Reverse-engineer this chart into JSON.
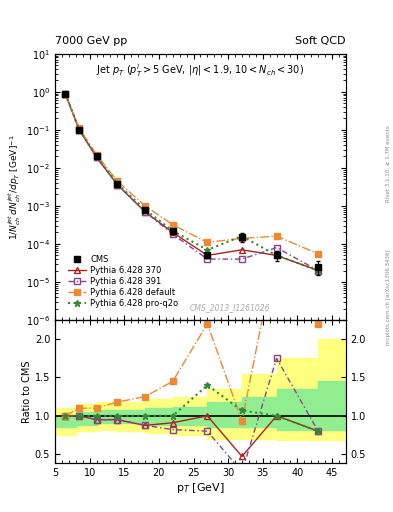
{
  "title_left": "7000 GeV pp",
  "title_right": "Soft QCD",
  "right_label1": "Rivet 3.1.10, ≥ 1.7M events",
  "right_label2": "mcplots.cern.ch [arXiv:1306.3436]",
  "watermark": "CMS_2013_I1261026",
  "xlabel": "p$_{T}$ [GeV]",
  "ylabel_main": "1/N$_{ch}^{jet}$ dN$_{ch}^{jet}$/dp$_{T}$  [GeV]$^{-1}$",
  "ylabel_ratio": "Ratio to CMS",
  "inner_title": "Jet p$_{T}$ (p$^{l}_{T}$>5 GeV, |$\\eta$|<1.9, 10<N$_{ch}$<30)",
  "cms_pt": [
    6.5,
    8.5,
    11,
    14,
    18,
    22,
    27,
    32,
    37,
    43
  ],
  "cms_y": [
    0.85,
    0.1,
    0.02,
    0.0038,
    0.0008,
    0.00022,
    5e-05,
    0.00015,
    5e-05,
    2.5e-05
  ],
  "cms_yerr": [
    0.03,
    0.006,
    0.001,
    0.0002,
    4e-05,
    1.5e-05,
    8e-06,
    4e-05,
    1.5e-05,
    1e-05
  ],
  "p370_pt": [
    6.5,
    8.5,
    11,
    14,
    18,
    22,
    27,
    32,
    37,
    43
  ],
  "p370_y": [
    0.88,
    0.1,
    0.019,
    0.0036,
    0.0007,
    0.0002,
    5e-05,
    7e-05,
    5e-05,
    2e-05
  ],
  "p391_pt": [
    6.5,
    8.5,
    11,
    14,
    18,
    22,
    27,
    32,
    37,
    43
  ],
  "p391_y": [
    0.88,
    0.1,
    0.019,
    0.0036,
    0.0007,
    0.00018,
    4e-05,
    4e-05,
    8e-05,
    2e-05
  ],
  "pdef_pt": [
    6.5,
    8.5,
    11,
    14,
    18,
    22,
    27,
    32,
    37,
    43
  ],
  "pdef_y": [
    0.88,
    0.11,
    0.022,
    0.0045,
    0.001,
    0.00032,
    0.00011,
    0.00014,
    0.00016,
    5.5e-05
  ],
  "pq2o_pt": [
    6.5,
    8.5,
    11,
    14,
    18,
    22,
    27,
    32,
    37,
    43
  ],
  "pq2o_y": [
    0.88,
    0.1,
    0.02,
    0.0038,
    0.0008,
    0.00022,
    7e-05,
    0.00016,
    5e-05,
    2e-05
  ],
  "r370_pt": [
    6.5,
    8.5,
    11,
    14,
    18,
    22,
    27,
    32,
    37,
    43
  ],
  "r370_y": [
    1.0,
    1.0,
    0.95,
    0.95,
    0.875,
    0.91,
    1.0,
    0.47,
    1.0,
    0.8
  ],
  "r391_pt": [
    6.5,
    8.5,
    11,
    14,
    18,
    22,
    27,
    32,
    37,
    43
  ],
  "r391_y": [
    1.0,
    1.0,
    0.95,
    0.95,
    0.875,
    0.82,
    0.8,
    0.27,
    1.75,
    0.8
  ],
  "rdef_pt": [
    6.5,
    8.5,
    11,
    14,
    18,
    22,
    27,
    32,
    37,
    43
  ],
  "rdef_y": [
    1.0,
    1.1,
    1.1,
    1.18,
    1.25,
    1.45,
    2.2,
    0.93,
    3.2,
    2.2
  ],
  "rq2o_pt": [
    6.5,
    8.5,
    11,
    14,
    18,
    22,
    27,
    32,
    37,
    43
  ],
  "rq2o_y": [
    1.0,
    1.0,
    1.0,
    1.0,
    1.0,
    1.0,
    1.4,
    1.07,
    1.0,
    0.8
  ],
  "band_y_x": [
    5,
    8,
    11,
    14,
    18,
    22,
    27,
    32,
    37,
    43,
    47
  ],
  "band_y_low": [
    0.75,
    0.8,
    0.82,
    0.8,
    0.78,
    0.75,
    0.7,
    0.7,
    0.68,
    0.68,
    0.68
  ],
  "band_y_high": [
    1.1,
    1.15,
    1.18,
    1.18,
    1.22,
    1.25,
    1.35,
    1.55,
    1.75,
    2.0,
    2.0
  ],
  "band_g_x": [
    5,
    8,
    11,
    14,
    18,
    22,
    27,
    32,
    37,
    43,
    47
  ],
  "band_g_low": [
    0.85,
    0.88,
    0.9,
    0.9,
    0.88,
    0.88,
    0.85,
    0.85,
    0.82,
    0.82,
    0.82
  ],
  "band_g_high": [
    1.0,
    1.05,
    1.07,
    1.07,
    1.1,
    1.12,
    1.18,
    1.25,
    1.35,
    1.45,
    1.45
  ],
  "color_cms": "#000000",
  "color_370": "#aa2222",
  "color_391": "#884488",
  "color_def": "#ee8833",
  "color_q2o": "#338833",
  "xlim": [
    5,
    47
  ],
  "ylim_main": [
    1e-06,
    10
  ],
  "ylim_ratio": [
    0.38,
    2.25
  ]
}
